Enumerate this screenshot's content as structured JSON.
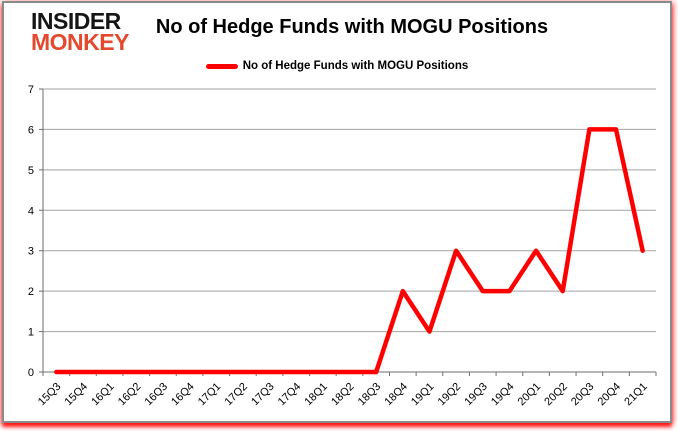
{
  "logo": {
    "line1": "INSIDER",
    "line2": "MONKEY"
  },
  "title": "No of Hedge Funds with MOGU Positions",
  "legend": {
    "label": "No of Hedge Funds with MOGU Positions",
    "color": "#ff0000"
  },
  "chart_data": {
    "type": "line",
    "title": "No of Hedge Funds with MOGU Positions",
    "categories": [
      "15Q3",
      "15Q4",
      "16Q1",
      "16Q2",
      "16Q3",
      "16Q4",
      "17Q1",
      "17Q2",
      "17Q3",
      "17Q4",
      "18Q1",
      "18Q2",
      "18Q3",
      "18Q4",
      "19Q1",
      "19Q2",
      "19Q3",
      "19Q4",
      "20Q1",
      "20Q2",
      "20Q3",
      "20Q4",
      "21Q1"
    ],
    "series": [
      {
        "name": "No of Hedge Funds with MOGU Positions",
        "values": [
          0,
          0,
          0,
          0,
          0,
          0,
          0,
          0,
          0,
          0,
          0,
          0,
          0,
          2,
          1,
          3,
          2,
          2,
          3,
          2,
          6,
          6,
          3
        ]
      }
    ],
    "xlabel": "",
    "ylabel": "",
    "ylim": [
      0,
      7
    ],
    "yticks": [
      0,
      1,
      2,
      3,
      4,
      5,
      6,
      7
    ],
    "grid": true,
    "legend_position": "top",
    "line_color": "#ff0000",
    "gridline_color": "#a3a3a3",
    "axis_color": "#6e6e6e",
    "label_color": "#000000"
  }
}
